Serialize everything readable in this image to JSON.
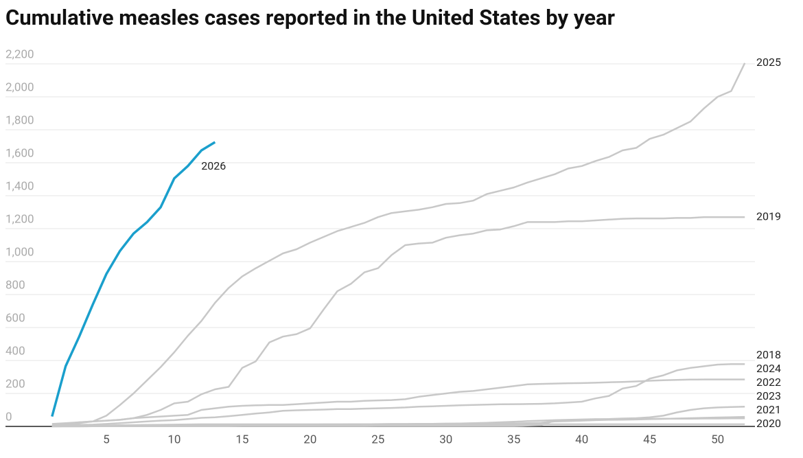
{
  "chart_data": {
    "type": "line",
    "title": "Cumulative measles cases reported in the United States by year",
    "x": [
      1,
      2,
      3,
      4,
      5,
      6,
      7,
      8,
      9,
      10,
      11,
      12,
      13,
      14,
      15,
      16,
      17,
      18,
      19,
      20,
      21,
      22,
      23,
      24,
      25,
      26,
      27,
      28,
      29,
      30,
      31,
      32,
      33,
      34,
      35,
      36,
      37,
      38,
      39,
      40,
      41,
      42,
      43,
      44,
      45,
      46,
      47,
      48,
      49,
      50,
      51,
      52
    ],
    "xlim": [
      0,
      53
    ],
    "xticks": [
      5,
      10,
      15,
      20,
      25,
      30,
      35,
      40,
      45,
      50
    ],
    "ylim": [
      0,
      2200
    ],
    "yticks": [
      0,
      200,
      400,
      600,
      800,
      {
        "value": 1000,
        "label": "1,000"
      },
      {
        "value": 1200,
        "label": "1,200"
      },
      {
        "value": 1400,
        "label": "1,400"
      },
      {
        "value": 1600,
        "label": "1,600"
      },
      {
        "value": 1800,
        "label": "1,800"
      },
      {
        "value": 2000,
        "label": "2,000"
      },
      {
        "value": 2200,
        "label": "2,200"
      }
    ],
    "grid": true,
    "series": [
      {
        "name": "2020",
        "color": "#c8c8c8",
        "values": [
          2,
          3,
          4,
          5,
          6,
          7,
          8,
          9,
          10,
          11,
          12,
          13,
          13,
          13,
          13,
          13,
          13,
          13,
          13,
          13,
          13,
          13,
          13,
          13,
          13,
          13,
          13,
          13,
          13,
          13,
          13,
          13,
          13,
          13,
          13,
          13,
          13,
          13,
          13,
          13,
          13,
          13,
          13,
          13,
          13,
          13,
          13,
          13,
          13,
          13,
          13,
          13
        ]
      },
      {
        "name": "2021",
        "color": "#c8c8c8",
        "values": [
          0,
          0,
          0,
          1,
          1,
          1,
          1,
          1,
          1,
          1,
          1,
          1,
          1,
          1,
          2,
          2,
          2,
          2,
          2,
          2,
          2,
          2,
          2,
          2,
          3,
          3,
          3,
          3,
          3,
          3,
          3,
          3,
          3,
          3,
          3,
          5,
          8,
          35,
          38,
          40,
          42,
          44,
          45,
          46,
          46,
          47,
          47,
          47,
          48,
          48,
          49,
          49
        ]
      },
      {
        "name": "2023",
        "color": "#c8c8c8",
        "values": [
          2,
          3,
          3,
          3,
          3,
          4,
          4,
          5,
          5,
          5,
          6,
          6,
          7,
          7,
          8,
          8,
          9,
          9,
          10,
          10,
          10,
          11,
          11,
          12,
          12,
          13,
          13,
          14,
          14,
          15,
          15,
          16,
          16,
          17,
          18,
          20,
          22,
          30,
          32,
          35,
          38,
          40,
          41,
          42,
          44,
          46,
          48,
          50,
          52,
          54,
          56,
          58
        ]
      },
      {
        "name": "2022",
        "color": "#c8c8c8",
        "values": [
          0,
          1,
          2,
          3,
          4,
          5,
          5,
          6,
          6,
          7,
          7,
          8,
          8,
          8,
          9,
          9,
          10,
          10,
          10,
          11,
          12,
          12,
          13,
          13,
          14,
          15,
          15,
          16,
          16,
          17,
          18,
          20,
          22,
          25,
          28,
          32,
          35,
          38,
          40,
          42,
          44,
          45,
          48,
          50,
          55,
          65,
          85,
          100,
          110,
          115,
          118,
          120
        ]
      },
      {
        "name": "2024",
        "color": "#c8c8c8",
        "values": [
          5,
          15,
          25,
          30,
          35,
          40,
          50,
          55,
          60,
          65,
          70,
          100,
          110,
          120,
          125,
          128,
          130,
          130,
          135,
          140,
          145,
          150,
          150,
          155,
          158,
          160,
          165,
          180,
          190,
          200,
          210,
          215,
          225,
          235,
          245,
          255,
          258,
          260,
          262,
          263,
          265,
          268,
          270,
          273,
          277,
          280,
          282,
          284,
          285,
          285,
          285,
          285
        ]
      },
      {
        "name": "2018",
        "color": "#c8c8c8",
        "values": [
          5,
          7,
          9,
          11,
          15,
          20,
          25,
          30,
          35,
          38,
          45,
          52,
          55,
          62,
          70,
          78,
          85,
          95,
          98,
          100,
          102,
          105,
          105,
          108,
          110,
          112,
          115,
          120,
          122,
          125,
          128,
          130,
          132,
          134,
          135,
          136,
          137,
          140,
          145,
          150,
          170,
          185,
          230,
          245,
          290,
          310,
          340,
          355,
          365,
          375,
          378,
          378
        ]
      },
      {
        "name": "2019",
        "color": "#c8c8c8",
        "values": [
          15,
          20,
          25,
          30,
          35,
          40,
          50,
          70,
          100,
          140,
          150,
          195,
          225,
          240,
          355,
          395,
          510,
          545,
          560,
          595,
          710,
          820,
          865,
          935,
          960,
          1040,
          1100,
          1110,
          1115,
          1145,
          1160,
          1170,
          1190,
          1195,
          1215,
          1240,
          1240,
          1240,
          1245,
          1245,
          1250,
          1255,
          1260,
          1262,
          1262,
          1262,
          1265,
          1265,
          1270,
          1270,
          1270,
          1270
        ]
      },
      {
        "name": "2025",
        "color": "#c8c8c8",
        "values": [
          5,
          10,
          20,
          30,
          65,
          130,
          200,
          280,
          360,
          450,
          550,
          640,
          750,
          840,
          910,
          960,
          1005,
          1050,
          1075,
          1115,
          1150,
          1185,
          1210,
          1235,
          1270,
          1295,
          1305,
          1315,
          1330,
          1350,
          1355,
          1370,
          1410,
          1430,
          1450,
          1480,
          1505,
          1530,
          1565,
          1580,
          1610,
          1635,
          1675,
          1690,
          1745,
          1770,
          1810,
          1850,
          1930,
          2000,
          2035,
          2205
        ]
      },
      {
        "name": "2026",
        "color": "#1a9fcc",
        "values": [
          60,
          365,
          545,
          740,
          925,
          1065,
          1170,
          1240,
          1330,
          1505,
          1580,
          1675,
          1725,
          null,
          null,
          null,
          null,
          null,
          null,
          null,
          null,
          null,
          null,
          null,
          null,
          null,
          null,
          null,
          null,
          null,
          null,
          null,
          null,
          null,
          null,
          null,
          null,
          null,
          null,
          null,
          null,
          null,
          null,
          null,
          null,
          null,
          null,
          null,
          null,
          null,
          null,
          null
        ]
      }
    ]
  }
}
